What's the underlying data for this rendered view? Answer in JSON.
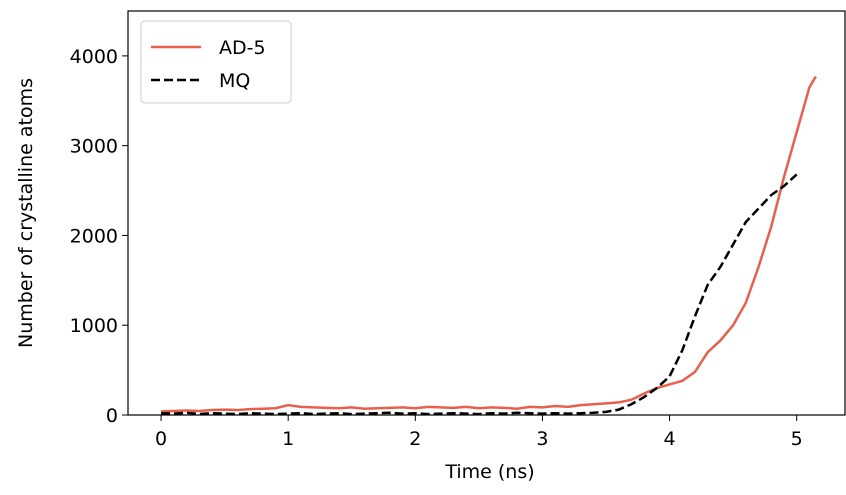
{
  "chart_data": {
    "type": "line",
    "xlabel": "Time (ns)",
    "ylabel": "Number of crystalline atoms",
    "xlim": [
      -0.26,
      5.38
    ],
    "xticks": [
      0,
      1,
      2,
      3,
      4,
      5
    ],
    "ylim": [
      0,
      4500
    ],
    "yticks": [
      0,
      1000,
      2000,
      3000,
      4000
    ],
    "legend": "upper left",
    "series": [
      {
        "name": "AD-5",
        "color": "#e8604c",
        "linestyle": "solid",
        "x": [
          0,
          0.1,
          0.2,
          0.3,
          0.4,
          0.5,
          0.6,
          0.7,
          0.8,
          0.9,
          1.0,
          1.1,
          1.2,
          1.3,
          1.4,
          1.5,
          1.6,
          1.7,
          1.8,
          1.9,
          2.0,
          2.1,
          2.2,
          2.3,
          2.4,
          2.5,
          2.6,
          2.7,
          2.8,
          2.9,
          3.0,
          3.1,
          3.2,
          3.3,
          3.4,
          3.5,
          3.6,
          3.7,
          3.8,
          3.9,
          4.0,
          4.1,
          4.2,
          4.3,
          4.4,
          4.5,
          4.6,
          4.7,
          4.8,
          4.9,
          5.0,
          5.1,
          5.15
        ],
        "values": [
          40,
          45,
          50,
          45,
          55,
          60,
          55,
          65,
          70,
          75,
          110,
          90,
          85,
          80,
          75,
          85,
          70,
          75,
          80,
          85,
          75,
          90,
          85,
          80,
          90,
          75,
          85,
          80,
          70,
          90,
          85,
          100,
          90,
          110,
          120,
          130,
          140,
          170,
          240,
          300,
          340,
          380,
          480,
          700,
          830,
          1000,
          1250,
          1650,
          2100,
          2650,
          3150,
          3650,
          3770
        ]
      },
      {
        "name": "MQ",
        "color": "#000000",
        "linestyle": "dashed",
        "x": [
          0,
          0.1,
          0.2,
          0.3,
          0.4,
          0.5,
          0.6,
          0.7,
          0.8,
          0.9,
          1.0,
          1.1,
          1.2,
          1.3,
          1.4,
          1.5,
          1.6,
          1.7,
          1.8,
          1.9,
          2.0,
          2.1,
          2.2,
          2.3,
          2.4,
          2.5,
          2.6,
          2.7,
          2.8,
          2.9,
          3.0,
          3.1,
          3.2,
          3.3,
          3.4,
          3.5,
          3.6,
          3.7,
          3.8,
          3.9,
          4.0,
          4.1,
          4.2,
          4.3,
          4.4,
          4.5,
          4.6,
          4.7,
          4.8,
          4.9,
          5.0
        ],
        "values": [
          20,
          15,
          25,
          10,
          20,
          15,
          10,
          20,
          15,
          10,
          15,
          20,
          10,
          15,
          20,
          10,
          15,
          20,
          25,
          15,
          20,
          10,
          15,
          20,
          15,
          10,
          20,
          15,
          25,
          20,
          15,
          20,
          15,
          20,
          25,
          35,
          60,
          120,
          200,
          300,
          430,
          720,
          1100,
          1450,
          1650,
          1900,
          2150,
          2300,
          2450,
          2550,
          2680
        ]
      }
    ]
  }
}
